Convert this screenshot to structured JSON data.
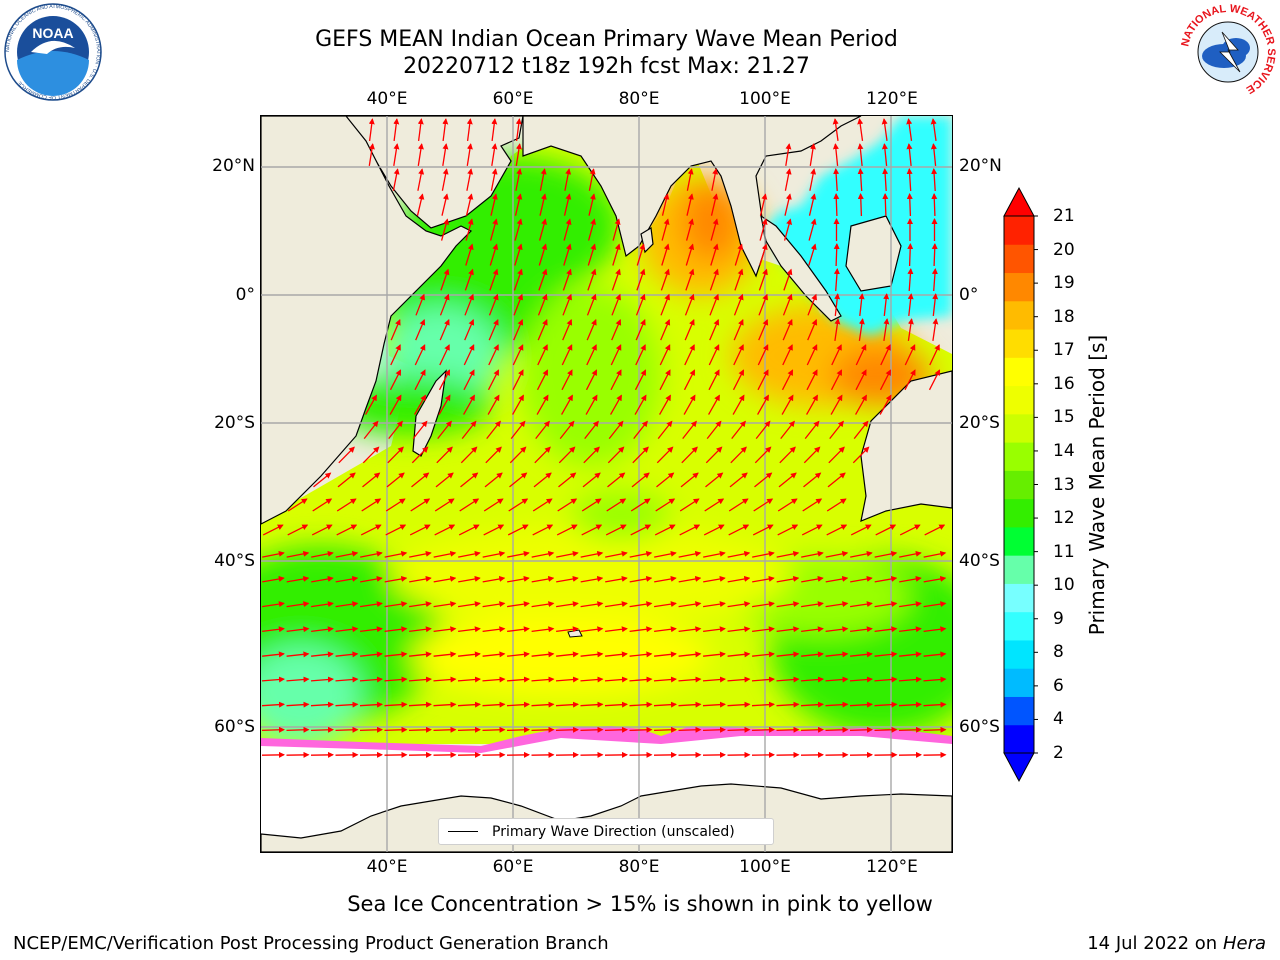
{
  "header": {
    "title_line1": "GEFS MEAN Indian Ocean Primary Wave Mean Period",
    "title_line2": "20220712 t18z 192h fcst   Max: 21.27"
  },
  "logos": {
    "left_name": "NOAA",
    "left_ring_text": "NATIONAL OCEANIC AND ATMOSPHERIC ADMINISTRATION · U.S. DEPARTMENT OF COMMERCE",
    "right_ring_text": "NATIONAL WEATHER SERVICE"
  },
  "map": {
    "lon_ticks": [
      "40°E",
      "60°E",
      "80°E",
      "100°E",
      "120°E"
    ],
    "lat_ticks": [
      "20°N",
      "0°",
      "20°S",
      "40°S",
      "60°S"
    ],
    "land_color": "#efecdc",
    "ice_color": "#ffffff",
    "arrow_color": "#ff0000",
    "legend_label": "Primary Wave Direction (unscaled)"
  },
  "colorbar": {
    "label": "Primary Wave Mean Period [s]",
    "tick_labels": [
      "21",
      "20",
      "19",
      "18",
      "17",
      "16",
      "15",
      "14",
      "13",
      "12",
      "11",
      "10",
      "9",
      "8",
      "6",
      "4",
      "2"
    ],
    "colors": [
      "#0000ff",
      "#0055ff",
      "#00bbff",
      "#00e5ff",
      "#33ffff",
      "#77ffff",
      "#66ffaa",
      "#00ff33",
      "#33ee00",
      "#66ee00",
      "#99ff00",
      "#ccff00",
      "#eeff00",
      "#ffff00",
      "#ffdd00",
      "#ffbb00",
      "#ff8800",
      "#ff5500",
      "#ff2200"
    ],
    "over_color": "#ff0000",
    "under_color": "#0000ff"
  },
  "footer": {
    "note": "Sea Ice Concentration > 15% is shown in pink to yellow",
    "credit": "NCEP/EMC/Verification Post Processing Product Generation Branch",
    "date": "14 Jul 2022 on",
    "host": "Hera"
  }
}
